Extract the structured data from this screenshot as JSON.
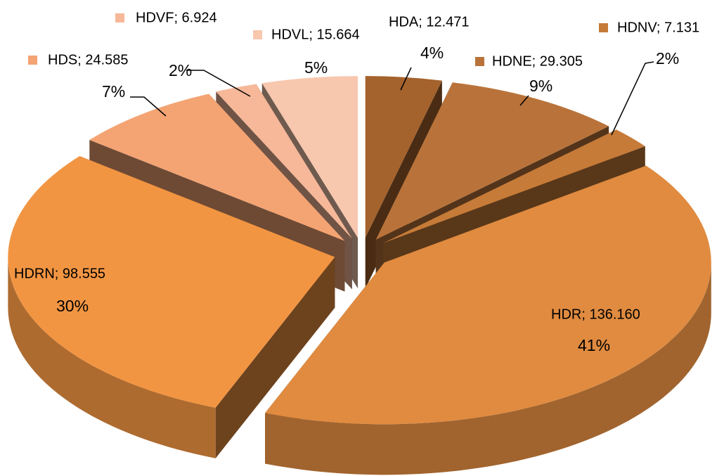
{
  "chart_data": {
    "type": "pie3d",
    "values": [
      12.471,
      29.305,
      7.131,
      136.16,
      98.555,
      24.585,
      6.924,
      15.664
    ],
    "value_labels": [
      "HDA; 12.471",
      "HDNE; 29.305",
      "HDNV; 7.131",
      "HDR; 136.160",
      "HDRN; 98.555",
      "HDS; 24.585",
      "HDVF; 6.924",
      "HDVL; 15.664"
    ],
    "percent_labels": [
      "4%",
      "9%",
      "2%",
      "41%",
      "30%",
      "7%",
      "2%",
      "5%"
    ],
    "colors": [
      "#a4622c",
      "#b9733a",
      "#c67b38",
      "#e08b40",
      "#f29542",
      "#f4a473",
      "#f6b899",
      "#f7c7ae"
    ]
  }
}
